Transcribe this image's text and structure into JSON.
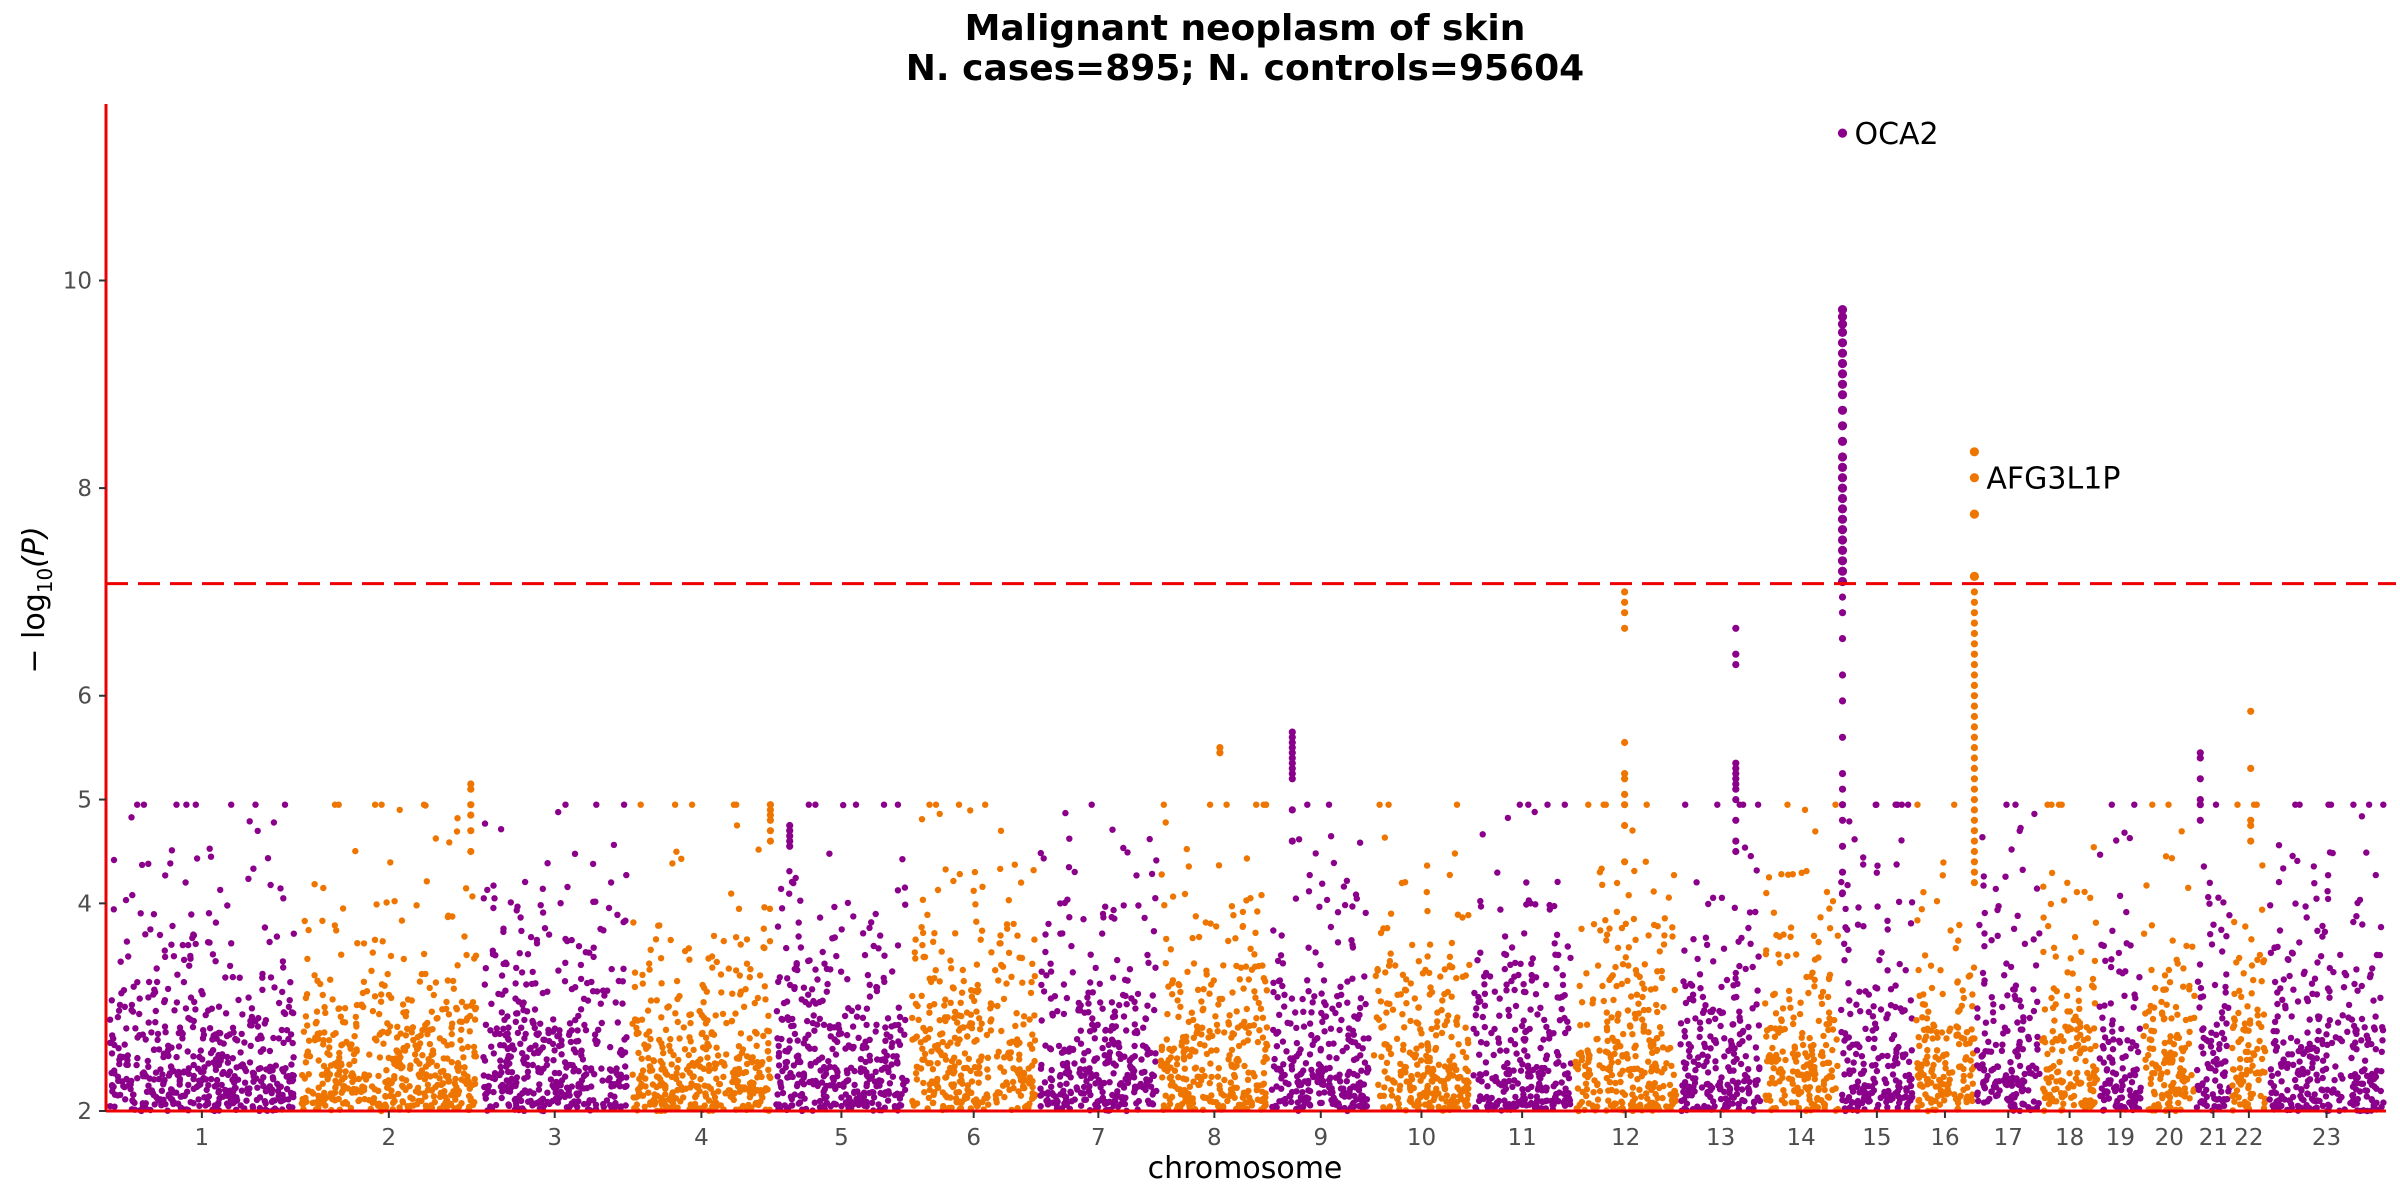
{
  "chart_data": {
    "type": "scatter",
    "title": "Malignant neoplasm of skin",
    "subtitle": "N. cases=895; N. controls=95604",
    "xlabel": "chromosome",
    "ylabel_main": "− log",
    "ylabel_sub": "10",
    "ylabel_arg": "(P)",
    "ylim": [
      2,
      11.7
    ],
    "yticks": [
      2,
      4,
      5,
      6,
      8,
      10
    ],
    "yticks_labels": [
      "2",
      "4",
      "5",
      "6",
      "8",
      "10"
    ],
    "significance_threshold": 7.08,
    "colors": {
      "odd": "#8B008B",
      "even": "#EE7600",
      "threshold": "#EE0000",
      "axis": "#EE0000"
    },
    "chromosomes": [
      {
        "label": "1",
        "start": 0.0,
        "end": 1.0
      },
      {
        "label": "2",
        "start": 1.0,
        "end": 1.95
      },
      {
        "label": "3",
        "start": 1.95,
        "end": 2.73
      },
      {
        "label": "4",
        "start": 2.73,
        "end": 3.48
      },
      {
        "label": "5",
        "start": 3.48,
        "end": 4.19
      },
      {
        "label": "6",
        "start": 4.19,
        "end": 4.86
      },
      {
        "label": "7",
        "start": 4.86,
        "end": 5.49
      },
      {
        "label": "8",
        "start": 5.49,
        "end": 6.07
      },
      {
        "label": "9",
        "start": 6.07,
        "end": 6.6
      },
      {
        "label": "10",
        "start": 6.6,
        "end": 7.12
      },
      {
        "label": "11",
        "start": 7.12,
        "end": 7.65
      },
      {
        "label": "12",
        "start": 7.65,
        "end": 8.2
      },
      {
        "label": "13",
        "start": 8.2,
        "end": 8.64
      },
      {
        "label": "14",
        "start": 8.64,
        "end": 9.04
      },
      {
        "label": "15",
        "start": 9.04,
        "end": 9.43
      },
      {
        "label": "16",
        "start": 9.43,
        "end": 9.75
      },
      {
        "label": "17",
        "start": 9.75,
        "end": 10.09
      },
      {
        "label": "18",
        "start": 10.09,
        "end": 10.39
      },
      {
        "label": "19",
        "start": 10.39,
        "end": 10.62
      },
      {
        "label": "20",
        "start": 10.62,
        "end": 10.9
      },
      {
        "label": "21",
        "start": 10.9,
        "end": 11.08
      },
      {
        "label": "22",
        "start": 11.08,
        "end": 11.27
      },
      {
        "label": "23",
        "start": 11.27,
        "end": 11.89
      }
    ],
    "peaks": [
      {
        "chrom": "15",
        "pos": 0.04,
        "points": [
          11.42,
          9.72,
          9.65,
          9.58,
          9.5,
          9.4,
          9.3,
          9.2,
          9.1,
          9.0,
          8.9,
          8.75,
          8.6,
          8.45,
          8.3,
          8.2,
          8.1,
          8.0,
          7.9,
          7.8,
          7.7,
          7.6,
          7.5,
          7.4,
          7.3,
          7.2,
          7.1,
          6.95,
          6.8,
          6.55,
          6.2,
          5.95,
          5.6,
          5.25,
          5.1,
          4.95,
          4.8,
          4.55,
          4.3,
          4.1
        ]
      },
      {
        "chrom": "16",
        "pos": 0.98,
        "points": [
          8.35,
          8.1,
          7.75,
          7.15,
          7.0,
          6.9,
          6.8,
          6.7,
          6.6,
          6.5,
          6.4,
          6.3,
          6.2,
          6.1,
          6.0,
          5.9,
          5.8,
          5.7,
          5.6,
          5.5,
          5.4,
          5.3,
          5.2,
          5.1,
          5.0,
          4.9,
          4.8,
          4.7,
          4.6,
          4.5,
          4.4,
          4.3,
          4.2
        ]
      },
      {
        "chrom": "12",
        "pos": 0.49,
        "points": [
          7.0,
          6.9,
          6.8,
          6.65,
          5.55,
          5.25,
          5.2,
          5.05,
          4.95,
          4.75,
          4.4
        ]
      },
      {
        "chrom": "13",
        "pos": 0.68,
        "points": [
          6.65,
          6.4,
          6.3,
          5.35,
          5.3,
          5.25,
          5.2,
          5.15,
          5.1,
          5.0,
          4.8,
          4.6,
          4.5
        ]
      },
      {
        "chrom": "9",
        "pos": 0.22,
        "points": [
          5.65,
          5.6,
          5.55,
          5.5,
          5.45,
          5.4,
          5.35,
          5.3,
          5.25,
          5.2,
          4.9,
          4.6
        ]
      },
      {
        "chrom": "21",
        "pos": 0.12,
        "points": [
          5.45,
          5.4,
          5.2,
          5.0,
          4.95,
          4.8
        ]
      },
      {
        "chrom": "22",
        "pos": 0.55,
        "points": [
          5.85,
          5.3,
          4.8,
          4.75,
          4.6
        ]
      },
      {
        "chrom": "2",
        "pos": 0.95,
        "points": [
          5.15,
          5.1,
          4.95,
          4.85,
          4.7,
          4.5
        ]
      },
      {
        "chrom": "4",
        "pos": 0.98,
        "points": [
          4.95,
          4.9,
          4.85,
          4.8,
          4.7,
          4.6
        ]
      },
      {
        "chrom": "8",
        "pos": 0.55,
        "points": [
          5.5,
          5.45
        ]
      },
      {
        "chrom": "5",
        "pos": 0.12,
        "points": [
          4.75,
          4.7,
          4.65,
          4.6,
          4.55
        ]
      }
    ],
    "annotations": [
      {
        "label": "OCA2",
        "chrom": "15",
        "y": 11.42
      },
      {
        "label": "AFG3L1P",
        "chrom": "16",
        "y": 8.1
      }
    ]
  }
}
